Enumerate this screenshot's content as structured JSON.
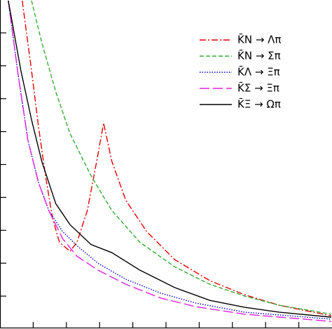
{
  "chart_data": {
    "type": "line",
    "xlim": [
      0,
      10
    ],
    "ylim": [
      0,
      10
    ],
    "xticks": [
      1,
      2,
      3,
      4,
      5,
      6,
      7,
      8,
      9
    ],
    "yticks": [
      1,
      2,
      3,
      4,
      5,
      6,
      7,
      8,
      9
    ],
    "legend": "upper right",
    "series": [
      {
        "name": "K̄N → Λπ",
        "color": "#e00000",
        "dash": "9,3,2,3",
        "x": [
          0.67,
          0.95,
          1.16,
          1.37,
          1.58,
          1.79,
          2.11,
          2.32,
          2.63,
          2.95,
          3.12,
          3.37,
          3.79,
          4.42,
          5.26,
          6.32,
          7.37,
          8.42,
          9.98
        ],
        "values": [
          9.98,
          7.85,
          6.15,
          4.66,
          3.38,
          2.64,
          2.36,
          2.64,
          3.6,
          5.3,
          6.26,
          5.09,
          3.91,
          2.96,
          2.11,
          1.47,
          1.04,
          0.72,
          0.4
        ]
      },
      {
        "name": "K̄N → Σπ",
        "color": "#33aa33",
        "dash": "6,3",
        "x": [
          0.95,
          1.26,
          1.68,
          2.11,
          2.74,
          3.37,
          4.21,
          5.26,
          6.32,
          7.37,
          8.42,
          9.98
        ],
        "values": [
          9.98,
          8.7,
          7.21,
          5.94,
          4.66,
          3.6,
          2.64,
          1.89,
          1.36,
          1.0,
          0.72,
          0.45
        ]
      },
      {
        "name": "K̄Λ → Ξπ",
        "color": "#0000cc",
        "dash": "1.5,2",
        "x": [
          0.25,
          0.53,
          0.84,
          1.16,
          1.47,
          1.89,
          2.32,
          2.95,
          3.79,
          4.84,
          5.89,
          7.37,
          9.98
        ],
        "values": [
          9.98,
          7.85,
          5.74,
          4.45,
          3.6,
          2.96,
          2.53,
          2.0,
          1.51,
          1.09,
          0.79,
          0.51,
          0.3
        ]
      },
      {
        "name": "K̄Σ → Ξπ",
        "color": "#e020e0",
        "dash": "14,5",
        "x": [
          0.25,
          0.53,
          0.84,
          1.16,
          1.47,
          1.89,
          2.32,
          2.95,
          3.79,
          4.84,
          5.89,
          7.37,
          9.98
        ],
        "values": [
          9.98,
          7.85,
          5.74,
          4.45,
          3.6,
          2.74,
          2.21,
          1.79,
          1.36,
          0.94,
          0.68,
          0.45,
          0.23
        ]
      },
      {
        "name": "K̄Ξ → Ωπ",
        "color": "#000000",
        "dash": "none",
        "x": [
          0.25,
          0.63,
          0.95,
          1.26,
          1.68,
          2.11,
          2.74,
          3.37,
          4.21,
          5.26,
          6.32,
          7.37,
          8.42,
          9.98
        ],
        "values": [
          9.98,
          7.85,
          6.36,
          5.09,
          3.81,
          3.17,
          2.57,
          2.32,
          1.79,
          1.26,
          0.87,
          0.66,
          0.51,
          0.36
        ]
      }
    ]
  }
}
